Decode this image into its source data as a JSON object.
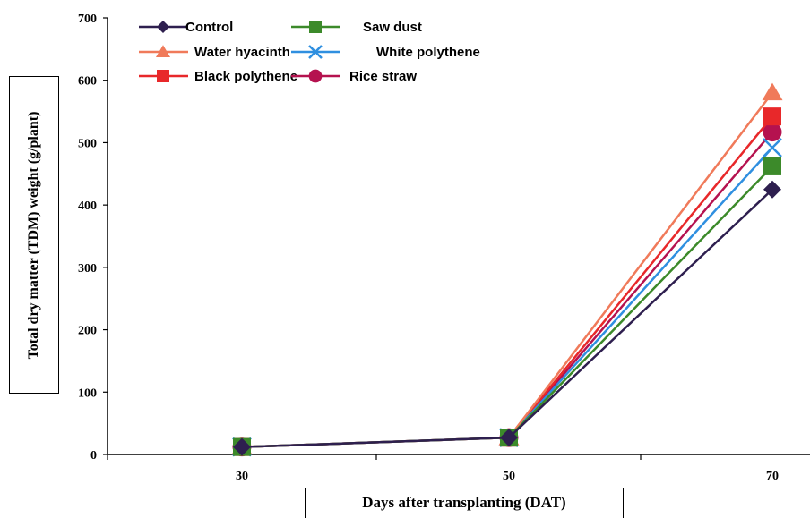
{
  "chart_data": {
    "type": "line",
    "xlabel": "Days after transplanting (DAT)",
    "ylabel": "Total dry matter (TDM) weight (g/plant)",
    "x": [
      30,
      50,
      70
    ],
    "xticks": [
      "30",
      "50",
      "70"
    ],
    "ylim": [
      0,
      700
    ],
    "yticks": [
      "0",
      "100",
      "200",
      "300",
      "400",
      "500",
      "600",
      "700"
    ],
    "legend_position": "top-left",
    "grid": false,
    "series": [
      {
        "name": "Control",
        "marker": "diamond",
        "color": "#2e1f4f",
        "values": [
          12,
          27,
          425
        ]
      },
      {
        "name": "Saw dust",
        "marker": "square",
        "color": "#3c8a2a",
        "values": [
          12,
          27,
          462
        ]
      },
      {
        "name": "Water hyacinth",
        "marker": "triangle",
        "color": "#f07a5a",
        "values": [
          12,
          27,
          580
        ]
      },
      {
        "name": "White polythene",
        "marker": "x",
        "color": "#2f8fe0",
        "values": [
          12,
          27,
          492
        ]
      },
      {
        "name": "Black polythene",
        "marker": "square",
        "color": "#e8282a",
        "values": [
          12,
          27,
          542
        ]
      },
      {
        "name": "Rice straw",
        "marker": "circle",
        "color": "#b5124f",
        "values": [
          12,
          27,
          517
        ]
      }
    ]
  }
}
